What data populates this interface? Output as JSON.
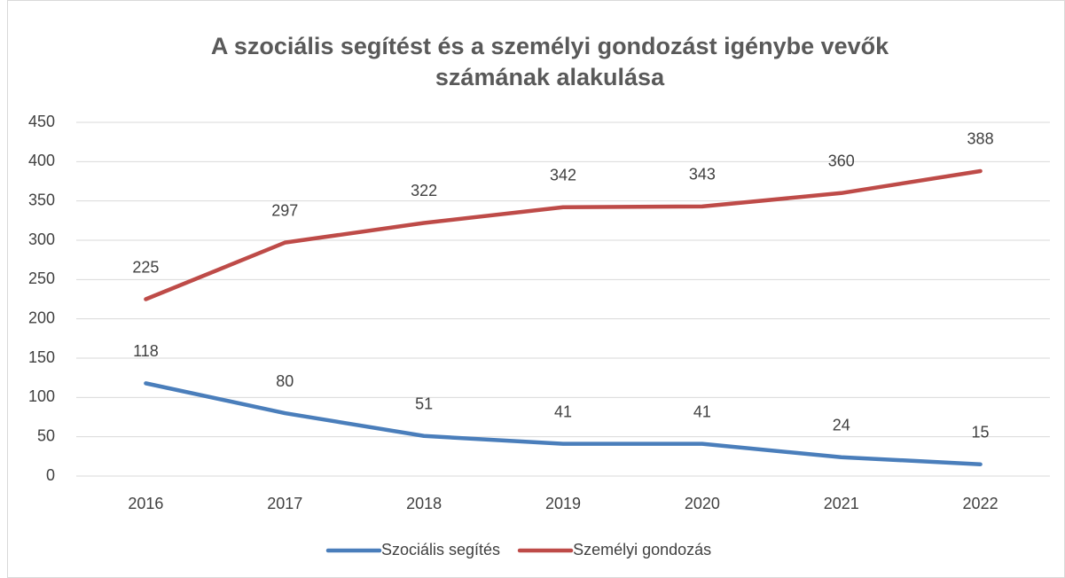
{
  "chart_data": {
    "type": "line",
    "title": [
      "A szociális segítést és a személyi gondozást igénybe vevők",
      "számának alakulása"
    ],
    "categories": [
      "2016",
      "2017",
      "2018",
      "2019",
      "2020",
      "2021",
      "2022"
    ],
    "series": [
      {
        "name": "Szociális segítés",
        "color": "#4a7ebb",
        "values": [
          118,
          80,
          51,
          41,
          41,
          24,
          15
        ]
      },
      {
        "name": "Személyi gondozás",
        "color": "#be4b48",
        "values": [
          225,
          297,
          322,
          342,
          343,
          360,
          388
        ]
      }
    ],
    "ylim": [
      0,
      450
    ],
    "yticks": [
      0,
      50,
      100,
      150,
      200,
      250,
      300,
      350,
      400,
      450
    ],
    "grid": true,
    "legend": "bottom",
    "data_labels": true
  }
}
